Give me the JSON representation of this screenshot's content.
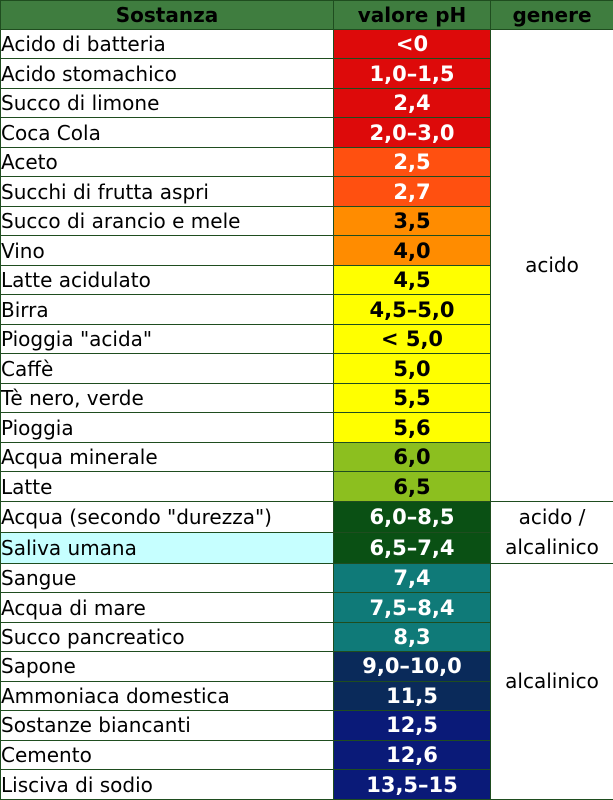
{
  "header": {
    "sostanza": "Sostanza",
    "valore": "valore pH",
    "genere": "genere"
  },
  "rows": [
    {
      "sostanza": "Acido di batteria",
      "valore": "<0",
      "bg": "#dd0a0a",
      "fg": "#ffffff"
    },
    {
      "sostanza": "Acido stomachico",
      "valore": "1,0–1,5",
      "bg": "#dd0a0a",
      "fg": "#ffffff"
    },
    {
      "sostanza": "Succo di limone",
      "valore": "2,4",
      "bg": "#dd0a0a",
      "fg": "#ffffff"
    },
    {
      "sostanza": "Coca Cola",
      "valore": "2,0–3,0",
      "bg": "#dd0a0a",
      "fg": "#ffffff"
    },
    {
      "sostanza": "Aceto",
      "valore": "2,5",
      "bg": "#ff5010",
      "fg": "#ffffff"
    },
    {
      "sostanza": "Succhi di frutta aspri",
      "valore": "2,7",
      "bg": "#ff5010",
      "fg": "#ffffff"
    },
    {
      "sostanza": "Succo di arancio e mele",
      "valore": "3,5",
      "bg": "#ff8c00",
      "fg": "#000000"
    },
    {
      "sostanza": "Vino",
      "valore": "4,0",
      "bg": "#ff8c00",
      "fg": "#000000"
    },
    {
      "sostanza": "Latte acidulato",
      "valore": "4,5",
      "bg": "#ffff00",
      "fg": "#000000"
    },
    {
      "sostanza": "Birra",
      "valore": "4,5–5,0",
      "bg": "#ffff00",
      "fg": "#000000"
    },
    {
      "sostanza": "Pioggia \"acida\"",
      "valore": "< 5,0",
      "bg": "#ffff00",
      "fg": "#000000"
    },
    {
      "sostanza": "Caffè",
      "valore": "5,0",
      "bg": "#ffff00",
      "fg": "#000000"
    },
    {
      "sostanza": "Tè nero, verde",
      "valore": "5,5",
      "bg": "#ffff00",
      "fg": "#000000"
    },
    {
      "sostanza": "Pioggia",
      "valore": "5,6",
      "bg": "#ffff00",
      "fg": "#000000"
    },
    {
      "sostanza": "Acqua minerale",
      "valore": "6,0",
      "bg": "#8cbf1f",
      "fg": "#000000"
    },
    {
      "sostanza": "Latte",
      "valore": "6,5",
      "bg": "#8cbf1f",
      "fg": "#000000"
    },
    {
      "sostanza": "Acqua (secondo \"durezza\")",
      "valore": "6,0–8,5",
      "bg": "#0a5014",
      "fg": "#ffffff"
    },
    {
      "sostanza": "Saliva umana",
      "valore": "6,5–7,4",
      "bg": "#0a5014",
      "fg": "#ffffff",
      "highlight": true
    },
    {
      "sostanza": "Sangue",
      "valore": "7,4",
      "bg": "#0f7a78",
      "fg": "#ffffff"
    },
    {
      "sostanza": "Acqua di mare",
      "valore": "7,5–8,4",
      "bg": "#0f7a78",
      "fg": "#ffffff"
    },
    {
      "sostanza": "Succo pancreatico",
      "valore": "8,3",
      "bg": "#0f7a78",
      "fg": "#ffffff"
    },
    {
      "sostanza": "Sapone",
      "valore": "9,0–10,0",
      "bg": "#0a2a5a",
      "fg": "#ffffff"
    },
    {
      "sostanza": "Ammoniaca domestica",
      "valore": "11,5",
      "bg": "#0a2a5a",
      "fg": "#ffffff"
    },
    {
      "sostanza": "Sostanze biancanti",
      "valore": "12,5",
      "bg": "#0a1a78",
      "fg": "#ffffff"
    },
    {
      "sostanza": "Cemento",
      "valore": "12,6",
      "bg": "#0a1a78",
      "fg": "#ffffff"
    },
    {
      "sostanza": "Lisciva di sodio",
      "valore": "13,5–15",
      "bg": "#0a1a78",
      "fg": "#ffffff"
    }
  ],
  "genere": {
    "acido": "acido",
    "misto_1": "acido /",
    "misto_2": "alcalinico",
    "alcalinico": "alcalinico"
  },
  "colors": {
    "header_bg": "#3f7d3f",
    "border": "#1f4d1f",
    "highlight_bg": "#c6ffff"
  }
}
